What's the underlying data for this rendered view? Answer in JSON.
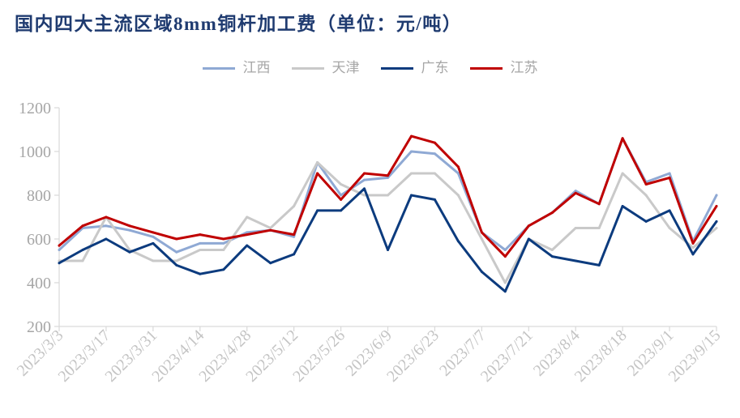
{
  "chart_data": {
    "type": "line",
    "title": "国内四大主流区域8mm铜杆加工费（单位：元/吨）",
    "xlabel": "",
    "ylabel": "",
    "x": [
      "2023/3/3",
      "2023/3/10",
      "2023/3/17",
      "2023/3/24",
      "2023/3/31",
      "2023/4/7",
      "2023/4/14",
      "2023/4/21",
      "2023/4/28",
      "2023/5/5",
      "2023/5/12",
      "2023/5/19",
      "2023/5/26",
      "2023/6/2",
      "2023/6/9",
      "2023/6/16",
      "2023/6/23",
      "2023/6/30",
      "2023/7/7",
      "2023/7/14",
      "2023/7/21",
      "2023/7/28",
      "2023/8/4",
      "2023/8/11",
      "2023/8/18",
      "2023/8/25",
      "2023/9/1",
      "2023/9/8",
      "2023/9/15"
    ],
    "xticks": [
      "2023/3/3",
      "2023/3/17",
      "2023/3/31",
      "2023/4/14",
      "2023/4/28",
      "2023/5/12",
      "2023/5/26",
      "2023/6/9",
      "2023/6/23",
      "2023/7/7",
      "2023/7/21",
      "2023/8/4",
      "2023/8/18",
      "2023/9/1",
      "2023/9/15"
    ],
    "ylim": [
      200,
      1200
    ],
    "yticks": [
      200,
      400,
      600,
      800,
      1000,
      1200
    ],
    "grid": false,
    "legend": "top-center",
    "series": [
      {
        "name": "江西",
        "color": "#8FA9D4",
        "values": [
          550,
          650,
          660,
          640,
          610,
          540,
          580,
          580,
          630,
          640,
          610,
          950,
          800,
          870,
          880,
          1000,
          990,
          900,
          630,
          550,
          660,
          720,
          820,
          760,
          1060,
          860,
          900,
          590,
          800
        ]
      },
      {
        "name": "天津",
        "color": "#C9C9C9",
        "values": [
          500,
          500,
          700,
          550,
          500,
          500,
          550,
          550,
          700,
          650,
          750,
          950,
          850,
          800,
          800,
          900,
          900,
          800,
          600,
          400,
          600,
          550,
          650,
          650,
          900,
          800,
          650,
          560,
          650
        ]
      },
      {
        "name": "广东",
        "color": "#0C3B7E",
        "values": [
          490,
          550,
          600,
          540,
          580,
          480,
          440,
          460,
          570,
          490,
          530,
          730,
          730,
          830,
          550,
          800,
          780,
          590,
          450,
          360,
          600,
          520,
          500,
          480,
          750,
          680,
          730,
          530,
          680
        ]
      },
      {
        "name": "江苏",
        "color": "#C00000",
        "values": [
          570,
          660,
          700,
          660,
          630,
          600,
          620,
          600,
          620,
          640,
          620,
          900,
          780,
          900,
          890,
          1070,
          1040,
          930,
          630,
          520,
          660,
          720,
          810,
          760,
          1060,
          850,
          880,
          580,
          750
        ]
      }
    ]
  }
}
